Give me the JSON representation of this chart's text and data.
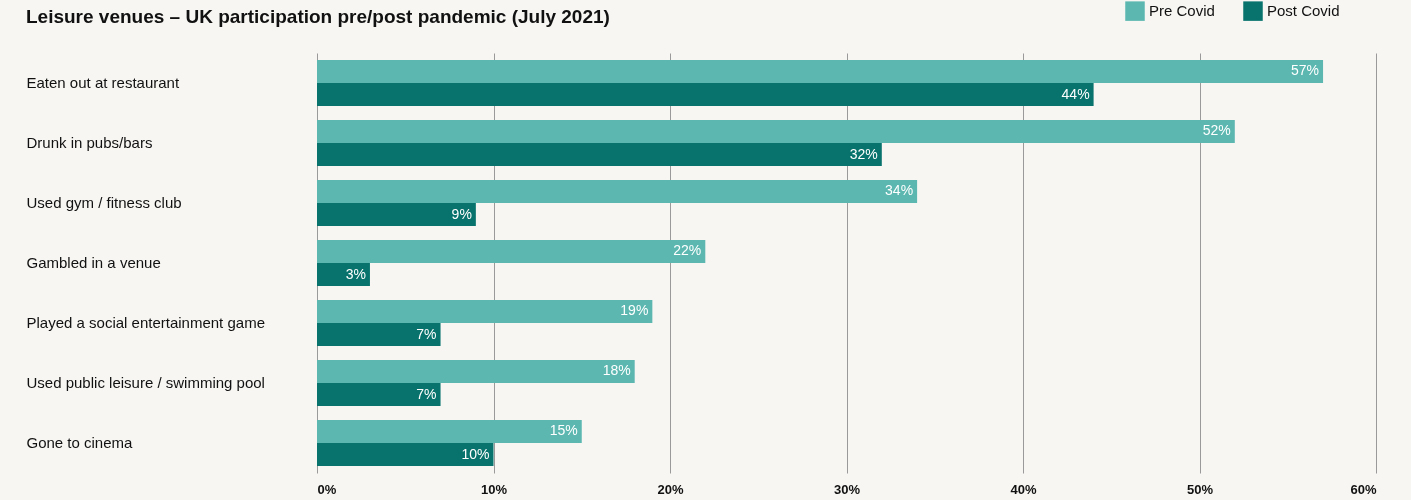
{
  "chart_data": {
    "type": "bar",
    "orientation": "horizontal",
    "title": "Leisure venues – UK participation pre/post pandemic (July 2021)",
    "categories": [
      "Eaten out at restaurant",
      "Drunk in pubs/bars",
      "Used gym / fitness club",
      "Gambled in a venue",
      "Played a social entertainment game",
      "Used public leisure / swimming pool",
      "Gone to cinema"
    ],
    "series": [
      {
        "name": "Pre Covid",
        "color": "#5bb7b0",
        "values": [
          57,
          52,
          34,
          22,
          19,
          18,
          15
        ],
        "value_labels": [
          "57%",
          "52%",
          "34%",
          "22%",
          "19%",
          "18%",
          "15%"
        ]
      },
      {
        "name": "Post Covid",
        "color": "#08736c",
        "values": [
          44,
          32,
          9,
          3,
          7,
          7,
          10
        ],
        "value_labels": [
          "44%",
          "32%",
          "9%",
          "3%",
          "7%",
          "7%",
          "10%"
        ]
      }
    ],
    "xlim": [
      0,
      60
    ],
    "xticks": [
      {
        "value": 0,
        "label": "0%"
      },
      {
        "value": 10,
        "label": "10%"
      },
      {
        "value": 20,
        "label": "20%"
      },
      {
        "value": 30,
        "label": "30%"
      },
      {
        "value": 40,
        "label": "40%"
      },
      {
        "value": 50,
        "label": "50%"
      },
      {
        "value": 60,
        "label": "60%"
      }
    ],
    "grid": "x",
    "legend": "top right"
  }
}
